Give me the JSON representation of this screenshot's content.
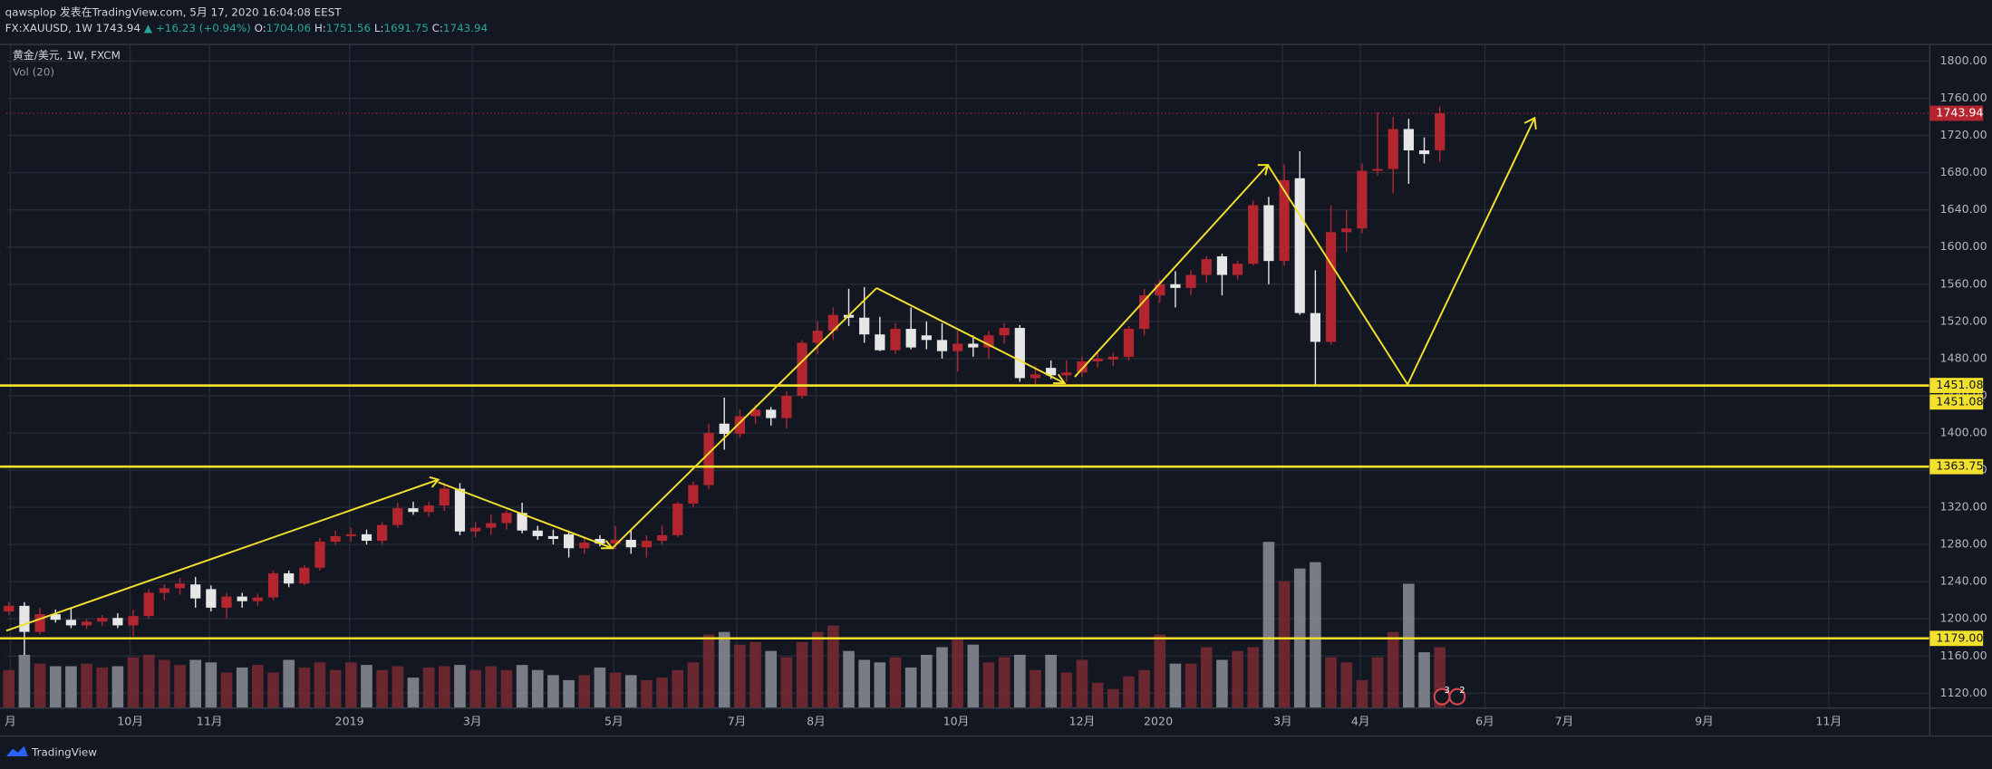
{
  "header": {
    "byline": "qawsplop 发表在TradingView.com, 5月 17, 2020 16:04:08 EEST",
    "symbol": "FX:XAUUSD, 1W",
    "change": "▲ +16.23 (+0.94%)",
    "ohlc_labels": [
      "O:",
      "H:",
      "L:",
      "C:"
    ]
  },
  "footer": {
    "brand": "TradingView"
  },
  "chart_data": {
    "type": "candlestick",
    "legend": "黄金/美元, 1W, FXCM",
    "volume_label": "Vol (20)",
    "up_color": "#b3262f",
    "down_color": "#e6e6e6",
    "vol_up_color": "#7b2a31",
    "vol_down_color": "#8c8e96",
    "ylim": [
      1104,
      1818
    ],
    "vlim": [
      0,
      140
    ],
    "xlim": [
      -0.16,
      123.5
    ],
    "yticks": [
      {
        "value": 1120,
        "label": "1120.00"
      },
      {
        "value": 1160,
        "label": "1160.00"
      },
      {
        "value": 1200,
        "label": "1200.00"
      },
      {
        "value": 1240,
        "label": "1240.00"
      },
      {
        "value": 1280,
        "label": "1280.00"
      },
      {
        "value": 1320,
        "label": "1320.00"
      },
      {
        "value": 1360,
        "label": "1360.00"
      },
      {
        "value": 1400,
        "label": "1400.00"
      },
      {
        "value": 1440,
        "label": "1440.00"
      },
      {
        "value": 1480,
        "label": "1480.00"
      },
      {
        "value": 1520,
        "label": "1520.00"
      },
      {
        "value": 1560,
        "label": "1560.00"
      },
      {
        "value": 1600,
        "label": "1600.00"
      },
      {
        "value": 1640,
        "label": "1640.00"
      },
      {
        "value": 1680,
        "label": "1680.00"
      },
      {
        "value": 1720,
        "label": "1720.00"
      },
      {
        "value": 1760,
        "label": "1760.00"
      },
      {
        "value": 1800,
        "label": "1800.00"
      }
    ],
    "xticks": [
      {
        "value": 0.1,
        "label": "月"
      },
      {
        "value": 7.8,
        "label": "10月"
      },
      {
        "value": 12.9,
        "label": "11月"
      },
      {
        "value": 21.9,
        "label": "2019"
      },
      {
        "value": 29.8,
        "label": "3月"
      },
      {
        "value": 38.9,
        "label": "5月"
      },
      {
        "value": 46.8,
        "label": "7月"
      },
      {
        "value": 51.9,
        "label": "8月"
      },
      {
        "value": 60.9,
        "label": "10月"
      },
      {
        "value": 69,
        "label": "12月"
      },
      {
        "value": 73.9,
        "label": "2020"
      },
      {
        "value": 81.9,
        "label": "3月"
      },
      {
        "value": 86.9,
        "label": "4月"
      },
      {
        "value": 94.9,
        "label": "6月"
      },
      {
        "value": 100,
        "label": "7月"
      },
      {
        "value": 109,
        "label": "9月"
      },
      {
        "value": 117,
        "label": "11月"
      }
    ],
    "levels": [
      1451.08,
      1451.08,
      1363.75,
      {
        "value": 1179,
        "label": "1179.00"
      }
    ],
    "badges": [
      "3",
      "2"
    ],
    "candles": [
      {
        "o": 1208,
        "h": 1218,
        "l": 1204,
        "c": 1214,
        "v": 30
      },
      {
        "o": 1214,
        "h": 1218,
        "l": 1161,
        "c": 1186,
        "v": 42
      },
      {
        "o": 1186,
        "h": 1212,
        "l": 1183,
        "c": 1205,
        "v": 35
      },
      {
        "o": 1205,
        "h": 1210,
        "l": 1196,
        "c": 1199,
        "v": 33
      },
      {
        "o": 1199,
        "h": 1212,
        "l": 1190,
        "c": 1193,
        "v": 33
      },
      {
        "o": 1193,
        "h": 1200,
        "l": 1189,
        "c": 1197,
        "v": 35
      },
      {
        "o": 1197,
        "h": 1204,
        "l": 1192,
        "c": 1201,
        "v": 32
      },
      {
        "o": 1201,
        "h": 1206,
        "l": 1190,
        "c": 1193,
        "v": 33
      },
      {
        "o": 1193,
        "h": 1210,
        "l": 1181,
        "c": 1203,
        "v": 40
      },
      {
        "o": 1203,
        "h": 1232,
        "l": 1200,
        "c": 1228,
        "v": 42
      },
      {
        "o": 1228,
        "h": 1237,
        "l": 1220,
        "c": 1233,
        "v": 38
      },
      {
        "o": 1233,
        "h": 1244,
        "l": 1226,
        "c": 1238,
        "v": 34
      },
      {
        "o": 1237,
        "h": 1245,
        "l": 1212,
        "c": 1222,
        "v": 38
      },
      {
        "o": 1232,
        "h": 1236,
        "l": 1208,
        "c": 1212,
        "v": 36
      },
      {
        "o": 1212,
        "h": 1228,
        "l": 1200,
        "c": 1224,
        "v": 28
      },
      {
        "o": 1224,
        "h": 1228,
        "l": 1212,
        "c": 1219,
        "v": 32
      },
      {
        "o": 1219,
        "h": 1227,
        "l": 1214,
        "c": 1223,
        "v": 34
      },
      {
        "o": 1223,
        "h": 1252,
        "l": 1220,
        "c": 1249,
        "v": 28
      },
      {
        "o": 1249,
        "h": 1252,
        "l": 1234,
        "c": 1238,
        "v": 38
      },
      {
        "o": 1238,
        "h": 1258,
        "l": 1236,
        "c": 1255,
        "v": 32
      },
      {
        "o": 1255,
        "h": 1287,
        "l": 1252,
        "c": 1283,
        "v": 36
      },
      {
        "o": 1283,
        "h": 1295,
        "l": 1280,
        "c": 1289,
        "v": 30
      },
      {
        "o": 1289,
        "h": 1298,
        "l": 1283,
        "c": 1291,
        "v": 36
      },
      {
        "o": 1291,
        "h": 1296,
        "l": 1280,
        "c": 1284,
        "v": 34
      },
      {
        "o": 1284,
        "h": 1304,
        "l": 1280,
        "c": 1301,
        "v": 30
      },
      {
        "o": 1301,
        "h": 1325,
        "l": 1298,
        "c": 1319,
        "v": 33
      },
      {
        "o": 1319,
        "h": 1326,
        "l": 1312,
        "c": 1315,
        "v": 24
      },
      {
        "o": 1315,
        "h": 1326,
        "l": 1310,
        "c": 1322,
        "v": 32
      },
      {
        "o": 1322,
        "h": 1346,
        "l": 1316,
        "c": 1340,
        "v": 33
      },
      {
        "o": 1340,
        "h": 1346,
        "l": 1290,
        "c": 1294,
        "v": 34
      },
      {
        "o": 1294,
        "h": 1304,
        "l": 1288,
        "c": 1298,
        "v": 30
      },
      {
        "o": 1298,
        "h": 1312,
        "l": 1290,
        "c": 1303,
        "v": 33
      },
      {
        "o": 1303,
        "h": 1317,
        "l": 1296,
        "c": 1314,
        "v": 30
      },
      {
        "o": 1314,
        "h": 1325,
        "l": 1292,
        "c": 1295,
        "v": 34
      },
      {
        "o": 1295,
        "h": 1300,
        "l": 1285,
        "c": 1289,
        "v": 30
      },
      {
        "o": 1289,
        "h": 1296,
        "l": 1280,
        "c": 1286,
        "v": 26
      },
      {
        "o": 1291,
        "h": 1295,
        "l": 1266,
        "c": 1276,
        "v": 22
      },
      {
        "o": 1276,
        "h": 1287,
        "l": 1270,
        "c": 1282,
        "v": 26
      },
      {
        "o": 1286,
        "h": 1290,
        "l": 1278,
        "c": 1281,
        "v": 32
      },
      {
        "o": 1281,
        "h": 1300,
        "l": 1275,
        "c": 1285,
        "v": 28
      },
      {
        "o": 1285,
        "h": 1296,
        "l": 1270,
        "c": 1277,
        "v": 26
      },
      {
        "o": 1277,
        "h": 1290,
        "l": 1266,
        "c": 1284,
        "v": 22
      },
      {
        "o": 1284,
        "h": 1300,
        "l": 1280,
        "c": 1290,
        "v": 24
      },
      {
        "o": 1290,
        "h": 1326,
        "l": 1288,
        "c": 1324,
        "v": 30
      },
      {
        "o": 1324,
        "h": 1348,
        "l": 1320,
        "c": 1344,
        "v": 36
      },
      {
        "o": 1344,
        "h": 1410,
        "l": 1340,
        "c": 1400,
        "v": 58
      },
      {
        "o": 1410,
        "h": 1438,
        "l": 1382,
        "c": 1399,
        "v": 60
      },
      {
        "o": 1399,
        "h": 1425,
        "l": 1395,
        "c": 1418,
        "v": 50
      },
      {
        "o": 1418,
        "h": 1430,
        "l": 1410,
        "c": 1425,
        "v": 52
      },
      {
        "o": 1425,
        "h": 1428,
        "l": 1408,
        "c": 1416,
        "v": 45
      },
      {
        "o": 1416,
        "h": 1445,
        "l": 1405,
        "c": 1440,
        "v": 40
      },
      {
        "o": 1440,
        "h": 1500,
        "l": 1437,
        "c": 1497,
        "v": 52
      },
      {
        "o": 1497,
        "h": 1520,
        "l": 1485,
        "c": 1510,
        "v": 60
      },
      {
        "o": 1510,
        "h": 1535,
        "l": 1500,
        "c": 1527,
        "v": 65
      },
      {
        "o": 1527,
        "h": 1555,
        "l": 1515,
        "c": 1524,
        "v": 45
      },
      {
        "o": 1524,
        "h": 1557,
        "l": 1497,
        "c": 1506,
        "v": 38
      },
      {
        "o": 1506,
        "h": 1525,
        "l": 1488,
        "c": 1489,
        "v": 36
      },
      {
        "o": 1489,
        "h": 1518,
        "l": 1485,
        "c": 1512,
        "v": 40
      },
      {
        "o": 1512,
        "h": 1535,
        "l": 1490,
        "c": 1492,
        "v": 32
      },
      {
        "o": 1505,
        "h": 1520,
        "l": 1490,
        "c": 1500,
        "v": 42
      },
      {
        "o": 1500,
        "h": 1518,
        "l": 1480,
        "c": 1488,
        "v": 48
      },
      {
        "o": 1488,
        "h": 1510,
        "l": 1466,
        "c": 1496,
        "v": 55
      },
      {
        "o": 1496,
        "h": 1505,
        "l": 1482,
        "c": 1492,
        "v": 50
      },
      {
        "o": 1492,
        "h": 1510,
        "l": 1480,
        "c": 1505,
        "v": 36
      },
      {
        "o": 1505,
        "h": 1518,
        "l": 1496,
        "c": 1513,
        "v": 40
      },
      {
        "o": 1513,
        "h": 1516,
        "l": 1455,
        "c": 1459,
        "v": 42
      },
      {
        "o": 1459,
        "h": 1472,
        "l": 1450,
        "c": 1463,
        "v": 30
      },
      {
        "o": 1470,
        "h": 1478,
        "l": 1458,
        "c": 1462,
        "v": 42
      },
      {
        "o": 1462,
        "h": 1478,
        "l": 1455,
        "c": 1465,
        "v": 28
      },
      {
        "o": 1465,
        "h": 1482,
        "l": 1460,
        "c": 1477,
        "v": 38
      },
      {
        "o": 1477,
        "h": 1488,
        "l": 1470,
        "c": 1480,
        "v": 20
      },
      {
        "o": 1479,
        "h": 1486,
        "l": 1472,
        "c": 1482,
        "v": 15
      },
      {
        "o": 1482,
        "h": 1515,
        "l": 1478,
        "c": 1512,
        "v": 25
      },
      {
        "o": 1512,
        "h": 1555,
        "l": 1505,
        "c": 1548,
        "v": 30
      },
      {
        "o": 1548,
        "h": 1565,
        "l": 1540,
        "c": 1560,
        "v": 58
      },
      {
        "o": 1560,
        "h": 1574,
        "l": 1535,
        "c": 1556,
        "v": 35
      },
      {
        "o": 1556,
        "h": 1575,
        "l": 1548,
        "c": 1570,
        "v": 35
      },
      {
        "o": 1570,
        "h": 1590,
        "l": 1562,
        "c": 1587,
        "v": 48
      },
      {
        "o": 1590,
        "h": 1593,
        "l": 1548,
        "c": 1570,
        "v": 38
      },
      {
        "o": 1570,
        "h": 1585,
        "l": 1565,
        "c": 1582,
        "v": 45
      },
      {
        "o": 1582,
        "h": 1650,
        "l": 1580,
        "c": 1645,
        "v": 48
      },
      {
        "o": 1645,
        "h": 1654,
        "l": 1560,
        "c": 1585,
        "v": 131
      },
      {
        "o": 1585,
        "h": 1689,
        "l": 1580,
        "c": 1672,
        "v": 100
      },
      {
        "o": 1674,
        "h": 1703,
        "l": 1527,
        "c": 1529,
        "v": 110
      },
      {
        "o": 1529,
        "h": 1575,
        "l": 1451,
        "c": 1498,
        "v": 115
      },
      {
        "o": 1498,
        "h": 1645,
        "l": 1495,
        "c": 1616,
        "v": 40
      },
      {
        "o": 1616,
        "h": 1640,
        "l": 1595,
        "c": 1620,
        "v": 36
      },
      {
        "o": 1620,
        "h": 1690,
        "l": 1615,
        "c": 1682,
        "v": 22
      },
      {
        "o": 1682,
        "h": 1745,
        "l": 1677,
        "c": 1684,
        "v": 40
      },
      {
        "o": 1684,
        "h": 1740,
        "l": 1658,
        "c": 1727,
        "v": 60
      },
      {
        "o": 1727,
        "h": 1738,
        "l": 1668,
        "c": 1704,
        "v": 98
      },
      {
        "o": 1704,
        "h": 1718,
        "l": 1690,
        "c": 1700,
        "v": 44
      },
      {
        "o": 1704.06,
        "h": 1751.56,
        "l": 1691.75,
        "c": 1743.94,
        "v": 48
      }
    ]
  }
}
